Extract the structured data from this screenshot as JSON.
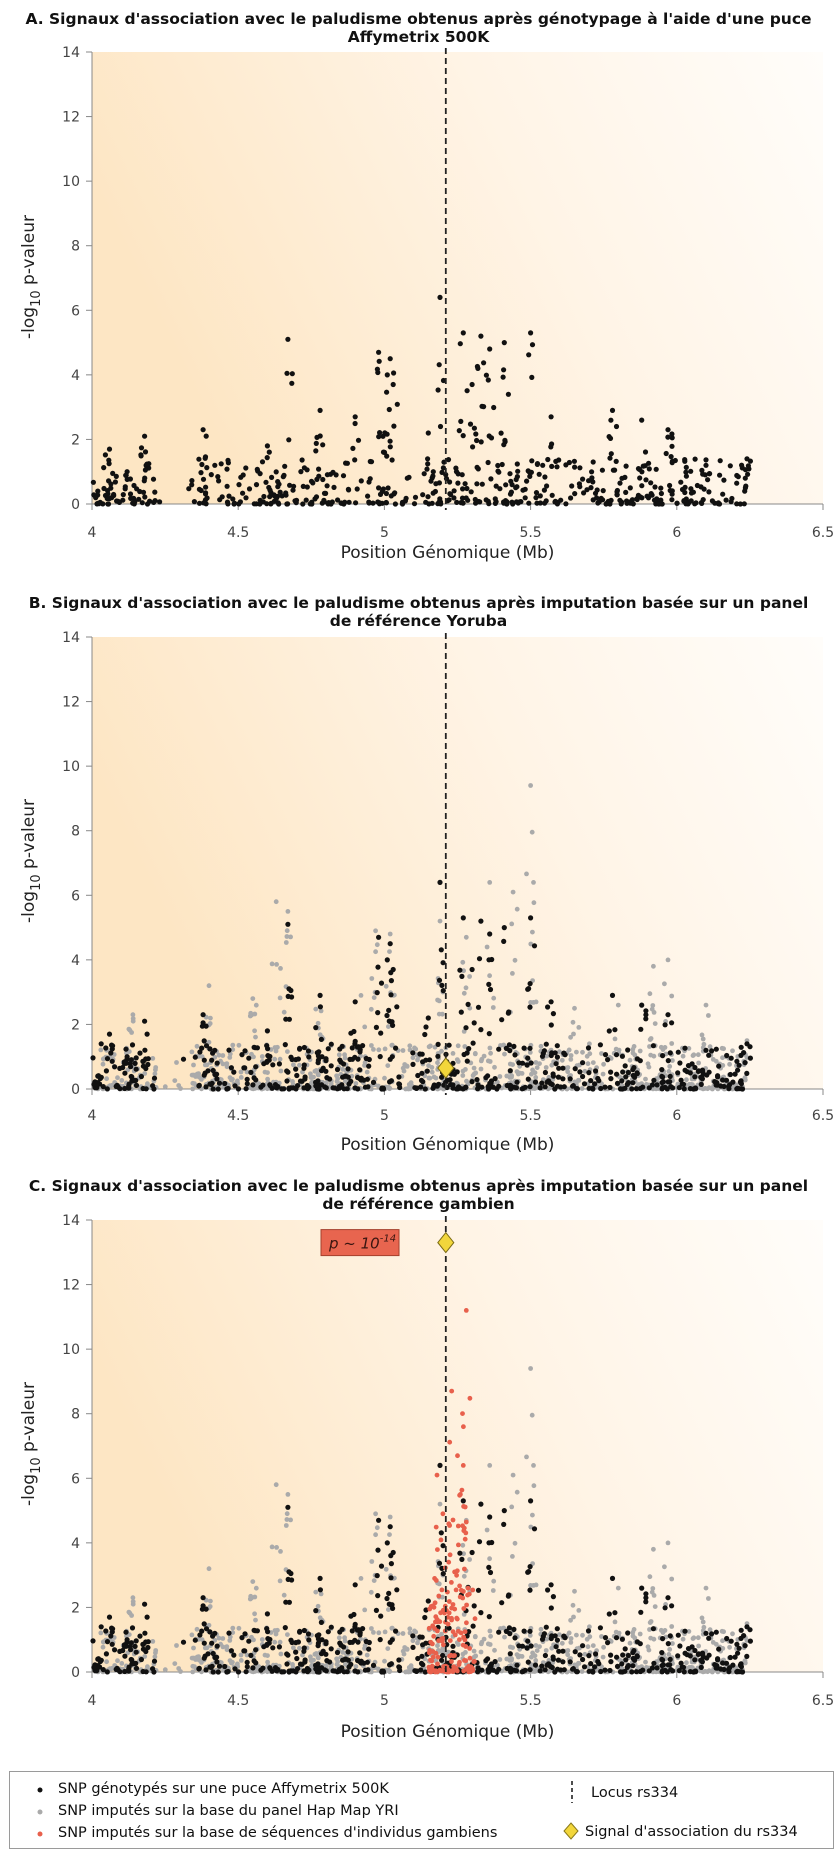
{
  "chart_data": [
    {
      "panel_id": "A",
      "type": "scatter",
      "title": "A. Signaux d'association avec le paludisme obtenus après génotypage à l'aide d'une puce Affymetrix 500K",
      "xlabel": "Position Génomique (Mb)",
      "ylabel": "-log10 p-valeur",
      "xlim": [
        4,
        6.5
      ],
      "ylim": [
        0,
        14
      ],
      "x_ticks": [
        "4",
        "4.5",
        "5",
        "5.5",
        "6",
        "6.5"
      ],
      "y_ticks": [
        "0",
        "2",
        "4",
        "6",
        "8",
        "10",
        "12",
        "14"
      ],
      "locus_x": 5.21,
      "series": [
        {
          "name": "SNP génotypés sur une puce Affymetrix 500K",
          "color": "#111111",
          "peaks": [
            [
              4.02,
              0.4
            ],
            [
              4.06,
              1.7
            ],
            [
              4.12,
              1.0
            ],
            [
              4.18,
              2.1
            ],
            [
              4.38,
              2.3
            ],
            [
              4.42,
              1.2
            ],
            [
              4.6,
              1.8
            ],
            [
              4.67,
              5.1
            ],
            [
              4.78,
              2.9
            ],
            [
              4.9,
              2.7
            ],
            [
              4.98,
              4.7
            ],
            [
              5.01,
              4.0
            ],
            [
              5.02,
              4.5
            ],
            [
              5.03,
              3.7
            ],
            [
              5.15,
              2.2
            ],
            [
              5.19,
              6.4
            ],
            [
              5.27,
              5.3
            ],
            [
              5.3,
              3.7
            ],
            [
              5.33,
              5.2
            ],
            [
              5.36,
              4.8
            ],
            [
              5.41,
              5.0
            ],
            [
              5.5,
              5.3
            ],
            [
              5.57,
              2.7
            ],
            [
              5.78,
              2.9
            ],
            [
              5.88,
              2.6
            ],
            [
              5.97,
              2.3
            ],
            [
              6.1,
              1.2
            ],
            [
              6.24,
              1.4
            ]
          ],
          "max_x": 6.24
        }
      ]
    },
    {
      "panel_id": "B",
      "type": "scatter",
      "title": "B. Signaux d'association avec le paludisme obtenus après imputation basée sur un panel de référence Yoruba",
      "xlabel": "Position Génomique (Mb)",
      "ylabel": "-log10 p-valeur",
      "xlim": [
        4,
        6.5
      ],
      "ylim": [
        0,
        14
      ],
      "x_ticks": [
        "4",
        "4.5",
        "5",
        "5.5",
        "6",
        "6.5"
      ],
      "y_ticks": [
        "0",
        "2",
        "4",
        "6",
        "8",
        "10",
        "12",
        "14"
      ],
      "locus_x": 5.21,
      "rs334": {
        "x": 5.21,
        "y": 0.65
      },
      "series": [
        {
          "name": "SNP imputés sur la base du panel Hap Map YRI",
          "color": "#aaaaaa",
          "peaks": [
            [
              4.05,
              1.2
            ],
            [
              4.14,
              2.3
            ],
            [
              4.4,
              3.2
            ],
            [
              4.55,
              2.8
            ],
            [
              4.63,
              5.8
            ],
            [
              4.67,
              5.5
            ],
            [
              4.78,
              2.9
            ],
            [
              4.92,
              2.9
            ],
            [
              4.97,
              4.9
            ],
            [
              5.02,
              4.8
            ],
            [
              5.19,
              5.2
            ],
            [
              5.2,
              3.0
            ],
            [
              5.28,
              4.7
            ],
            [
              5.36,
              6.4
            ],
            [
              5.44,
              6.1
            ],
            [
              5.5,
              9.4
            ],
            [
              5.51,
              6.4
            ],
            [
              5.65,
              2.5
            ],
            [
              5.8,
              2.6
            ],
            [
              5.92,
              3.8
            ],
            [
              5.97,
              4.0
            ],
            [
              6.1,
              2.6
            ],
            [
              6.24,
              1.5
            ]
          ],
          "max_x": 6.24
        },
        {
          "name": "SNP génotypés sur une puce Affymetrix 500K",
          "color": "#111111",
          "peaks": [
            [
              4.02,
              0.4
            ],
            [
              4.06,
              1.7
            ],
            [
              4.12,
              1.0
            ],
            [
              4.18,
              2.1
            ],
            [
              4.38,
              2.3
            ],
            [
              4.42,
              1.2
            ],
            [
              4.6,
              1.8
            ],
            [
              4.67,
              5.1
            ],
            [
              4.78,
              2.9
            ],
            [
              4.9,
              2.7
            ],
            [
              4.98,
              4.7
            ],
            [
              5.01,
              4.0
            ],
            [
              5.02,
              4.5
            ],
            [
              5.03,
              3.7
            ],
            [
              5.15,
              2.2
            ],
            [
              5.19,
              6.4
            ],
            [
              5.27,
              5.3
            ],
            [
              5.3,
              3.7
            ],
            [
              5.33,
              5.2
            ],
            [
              5.36,
              4.8
            ],
            [
              5.41,
              5.0
            ],
            [
              5.5,
              5.3
            ],
            [
              5.57,
              2.7
            ],
            [
              5.78,
              2.9
            ],
            [
              5.88,
              2.6
            ],
            [
              5.97,
              2.3
            ],
            [
              6.1,
              1.2
            ],
            [
              6.24,
              1.4
            ]
          ],
          "max_x": 6.24
        }
      ]
    },
    {
      "panel_id": "C",
      "type": "scatter",
      "title": "C. Signaux d'association avec le paludisme obtenus après imputation basée sur un panel de référence gambien",
      "xlabel": "Position Génomique (Mb)",
      "ylabel": "-log10 p-valeur",
      "xlim": [
        4,
        6.5
      ],
      "ylim": [
        0,
        14
      ],
      "x_ticks": [
        "4",
        "4.5",
        "5",
        "5.5",
        "6",
        "6.5"
      ],
      "y_ticks": [
        "0",
        "2",
        "4",
        "6",
        "8",
        "10",
        "12",
        "14"
      ],
      "locus_x": 5.21,
      "rs334": {
        "x": 5.21,
        "y": 13.3
      },
      "annotation": {
        "text_base": "p ~ 10",
        "text_exp": "-14",
        "x": 4.92,
        "y": 13.3
      },
      "series": [
        {
          "name": "SNP imputés sur la base du panel Hap Map YRI",
          "color": "#aaaaaa",
          "peaks": [
            [
              4.05,
              1.2
            ],
            [
              4.14,
              2.3
            ],
            [
              4.4,
              3.2
            ],
            [
              4.55,
              2.8
            ],
            [
              4.63,
              5.8
            ],
            [
              4.67,
              5.5
            ],
            [
              4.78,
              2.9
            ],
            [
              4.92,
              2.9
            ],
            [
              4.97,
              4.9
            ],
            [
              5.02,
              4.8
            ],
            [
              5.19,
              5.2
            ],
            [
              5.2,
              3.0
            ],
            [
              5.28,
              4.7
            ],
            [
              5.36,
              6.4
            ],
            [
              5.44,
              6.1
            ],
            [
              5.5,
              9.4
            ],
            [
              5.51,
              6.4
            ],
            [
              5.65,
              2.5
            ],
            [
              5.8,
              2.6
            ],
            [
              5.92,
              3.8
            ],
            [
              5.97,
              4.0
            ],
            [
              6.1,
              2.6
            ],
            [
              6.24,
              1.5
            ]
          ],
          "max_x": 6.24
        },
        {
          "name": "SNP génotypés sur une puce Affymetrix 500K",
          "color": "#111111",
          "peaks": [
            [
              4.02,
              0.4
            ],
            [
              4.06,
              1.7
            ],
            [
              4.12,
              1.0
            ],
            [
              4.18,
              2.1
            ],
            [
              4.38,
              2.3
            ],
            [
              4.42,
              1.2
            ],
            [
              4.6,
              1.8
            ],
            [
              4.67,
              5.1
            ],
            [
              4.78,
              2.9
            ],
            [
              4.9,
              2.7
            ],
            [
              4.98,
              4.7
            ],
            [
              5.01,
              4.0
            ],
            [
              5.02,
              4.5
            ],
            [
              5.03,
              3.7
            ],
            [
              5.15,
              2.2
            ],
            [
              5.19,
              6.4
            ],
            [
              5.27,
              5.3
            ],
            [
              5.3,
              3.7
            ],
            [
              5.33,
              5.2
            ],
            [
              5.36,
              4.8
            ],
            [
              5.41,
              5.0
            ],
            [
              5.5,
              5.3
            ],
            [
              5.57,
              2.7
            ],
            [
              5.78,
              2.9
            ],
            [
              5.88,
              2.6
            ],
            [
              5.97,
              2.3
            ],
            [
              6.1,
              1.2
            ],
            [
              6.24,
              1.4
            ]
          ],
          "max_x": 6.24
        },
        {
          "name": "SNP imputés sur la base de séquences d'individus gambiens",
          "color": "#e8604c",
          "peaks": [
            [
              5.18,
              6.1
            ],
            [
              5.2,
              4.9
            ],
            [
              5.23,
              8.7
            ],
            [
              5.25,
              6.7
            ],
            [
              5.26,
              5.5
            ],
            [
              5.27,
              6.4
            ],
            [
              5.28,
              11.2
            ],
            [
              5.22,
              3.4
            ],
            [
              5.24,
              3.1
            ]
          ],
          "range": [
            5.15,
            5.31
          ]
        }
      ]
    }
  ],
  "legend": {
    "genotyped": "SNP génotypés sur une puce Affymetrix 500K",
    "yri": "SNP imputés sur la base du panel Hap Map YRI",
    "gambian": "SNP imputés sur la base de séquences d'individus gambiens",
    "locus": "Locus rs334",
    "signal": "Signal d'association du rs334"
  },
  "colors": {
    "genotyped": "#111111",
    "yri": "#aaaaaa",
    "gambian": "#e8604c",
    "diamond": "#f2d63b",
    "annotation_box": "#e8654f"
  }
}
